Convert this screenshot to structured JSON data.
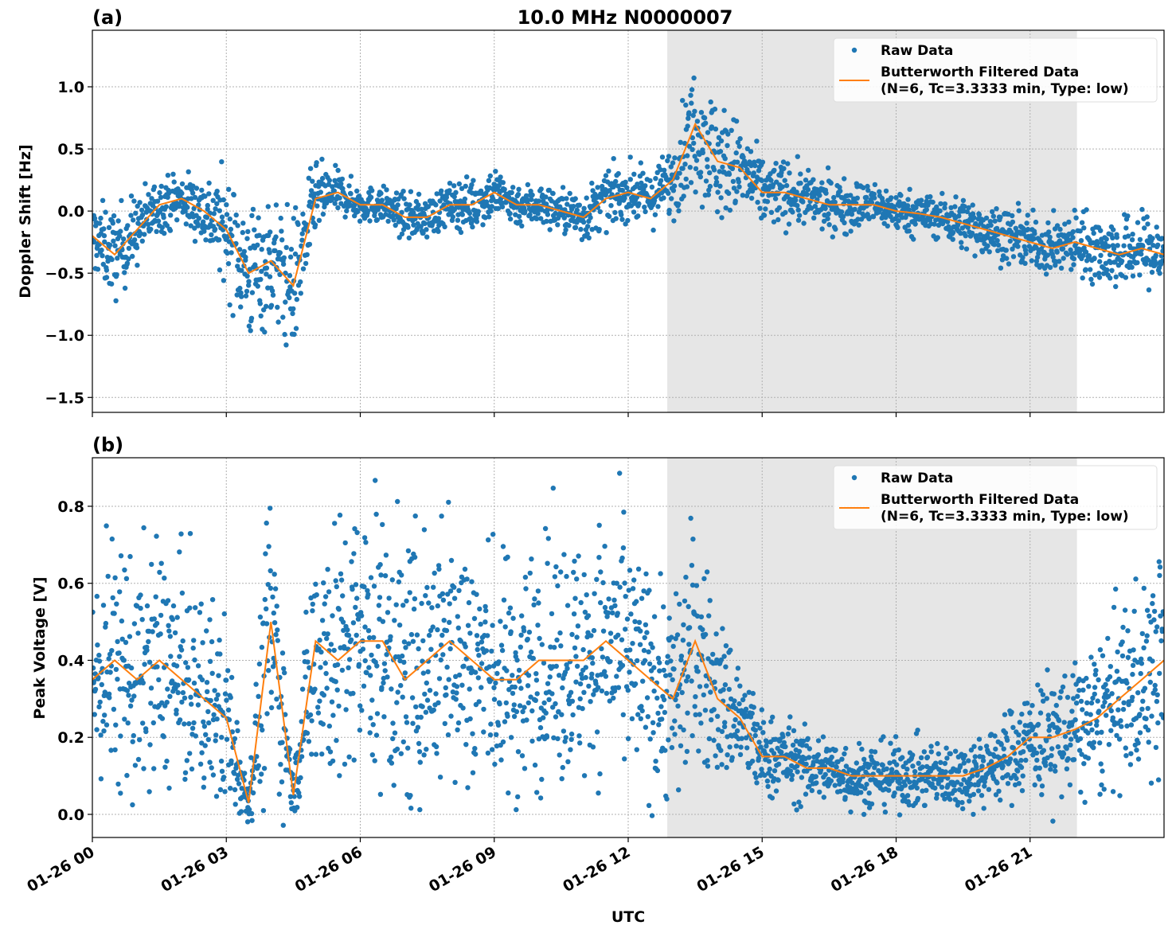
{
  "colors": {
    "raw": "#1f77b4",
    "filtered": "#ff7f0e",
    "shade": "#e6e6e6"
  },
  "chart_data": [
    {
      "type": "scatter+line",
      "panel_label": "(a)",
      "title": "10.0 MHz N0000007",
      "xlabel": "",
      "ylabel": "Doppler Shift [Hz]",
      "xlim_hours_utc": [
        0,
        24
      ],
      "ylim": [
        -1.62,
        1.455
      ],
      "yticks": [
        "1.0",
        "0.5",
        "0.0",
        "−0.5",
        "−1.0",
        "−1.5"
      ],
      "ytick_values": [
        1.0,
        0.5,
        0.0,
        -0.5,
        -1.0,
        -1.5
      ],
      "grid": true,
      "shaded_span_hours": [
        12.875,
        22.05
      ],
      "legend": {
        "position": "top-right",
        "items": [
          "Raw Data",
          "Butterworth Filtered Data",
          "(N=6, Tc=3.3333 min, Type: low)"
        ]
      },
      "x_hours": [
        0,
        0.5,
        1,
        1.5,
        2,
        2.5,
        3,
        3.5,
        4,
        4.5,
        5,
        5.5,
        6,
        6.5,
        7,
        7.5,
        8,
        8.5,
        9,
        9.5,
        10,
        10.5,
        11,
        11.5,
        12,
        12.5,
        13,
        13.5,
        14,
        14.5,
        15,
        15.5,
        16,
        16.5,
        17,
        17.5,
        18,
        18.5,
        19,
        19.5,
        20,
        20.5,
        21,
        21.5,
        22,
        22.5,
        23,
        23.5,
        24
      ],
      "series": [
        {
          "name": "Butterworth Filtered Data",
          "values": [
            -0.2,
            -0.35,
            -0.15,
            0.05,
            0.1,
            0.0,
            -0.15,
            -0.5,
            -0.4,
            -0.6,
            0.1,
            0.15,
            0.05,
            0.05,
            -0.05,
            -0.05,
            0.05,
            0.05,
            0.15,
            0.05,
            0.05,
            0.0,
            -0.05,
            0.1,
            0.15,
            0.1,
            0.25,
            0.7,
            0.4,
            0.35,
            0.15,
            0.15,
            0.1,
            0.05,
            0.05,
            0.05,
            0.0,
            -0.02,
            -0.05,
            -0.1,
            -0.15,
            -0.2,
            -0.25,
            -0.3,
            -0.25,
            -0.3,
            -0.35,
            -0.3,
            -0.35
          ]
        },
        {
          "name": "Raw Data",
          "spread": [
            0.2,
            0.25,
            0.2,
            0.15,
            0.15,
            0.2,
            0.3,
            0.4,
            0.35,
            0.4,
            0.2,
            0.12,
            0.1,
            0.1,
            0.12,
            0.12,
            0.12,
            0.15,
            0.15,
            0.12,
            0.12,
            0.12,
            0.15,
            0.15,
            0.15,
            0.15,
            0.2,
            0.35,
            0.35,
            0.25,
            0.2,
            0.18,
            0.15,
            0.15,
            0.15,
            0.12,
            0.12,
            0.12,
            0.12,
            0.15,
            0.15,
            0.15,
            0.15,
            0.15,
            0.18,
            0.2,
            0.2,
            0.2,
            0.2
          ]
        }
      ]
    },
    {
      "type": "scatter+line",
      "panel_label": "(b)",
      "xlabel": "UTC",
      "ylabel": "Peak Voltage [V]",
      "xlim_hours_utc": [
        0,
        24
      ],
      "ylim": [
        -0.06,
        0.926
      ],
      "yticks": [
        "0.8",
        "0.6",
        "0.4",
        "0.2",
        "0.0"
      ],
      "ytick_values": [
        0.8,
        0.6,
        0.4,
        0.2,
        0.0
      ],
      "xticks": [
        "01-26 00",
        "01-26 03",
        "01-26 06",
        "01-26 09",
        "01-26 12",
        "01-26 15",
        "01-26 18",
        "01-26 21"
      ],
      "xtick_hours": [
        0,
        3,
        6,
        9,
        12,
        15,
        18,
        21
      ],
      "grid": true,
      "shaded_span_hours": [
        12.875,
        22.05
      ],
      "legend": {
        "position": "top-right",
        "items": [
          "Raw Data",
          "Butterworth Filtered Data",
          "(N=6, Tc=3.3333 min, Type: low)"
        ]
      },
      "x_hours": [
        0,
        0.5,
        1,
        1.5,
        2,
        2.5,
        3,
        3.5,
        4,
        4.5,
        5,
        5.5,
        6,
        6.5,
        7,
        7.5,
        8,
        8.5,
        9,
        9.5,
        10,
        10.5,
        11,
        11.5,
        12,
        12.5,
        13,
        13.5,
        14,
        14.5,
        15,
        15.5,
        16,
        16.5,
        17,
        17.5,
        18,
        18.5,
        19,
        19.5,
        20,
        20.5,
        21,
        21.5,
        22,
        22.5,
        23,
        23.5,
        24
      ],
      "series": [
        {
          "name": "Butterworth Filtered Data",
          "values": [
            0.35,
            0.4,
            0.35,
            0.4,
            0.35,
            0.3,
            0.25,
            0.03,
            0.5,
            0.05,
            0.45,
            0.4,
            0.45,
            0.45,
            0.35,
            0.4,
            0.45,
            0.4,
            0.35,
            0.35,
            0.4,
            0.4,
            0.4,
            0.45,
            0.4,
            0.35,
            0.3,
            0.45,
            0.3,
            0.25,
            0.15,
            0.15,
            0.12,
            0.12,
            0.1,
            0.1,
            0.1,
            0.1,
            0.1,
            0.1,
            0.12,
            0.15,
            0.2,
            0.2,
            0.22,
            0.25,
            0.3,
            0.35,
            0.4
          ]
        },
        {
          "name": "Raw Data",
          "spread": [
            0.2,
            0.22,
            0.22,
            0.22,
            0.2,
            0.18,
            0.18,
            0.03,
            0.3,
            0.03,
            0.25,
            0.25,
            0.25,
            0.25,
            0.25,
            0.25,
            0.25,
            0.25,
            0.22,
            0.22,
            0.22,
            0.22,
            0.22,
            0.22,
            0.22,
            0.2,
            0.2,
            0.22,
            0.15,
            0.12,
            0.08,
            0.07,
            0.07,
            0.06,
            0.06,
            0.06,
            0.06,
            0.06,
            0.06,
            0.06,
            0.07,
            0.08,
            0.1,
            0.12,
            0.12,
            0.14,
            0.16,
            0.18,
            0.2
          ]
        }
      ]
    }
  ]
}
